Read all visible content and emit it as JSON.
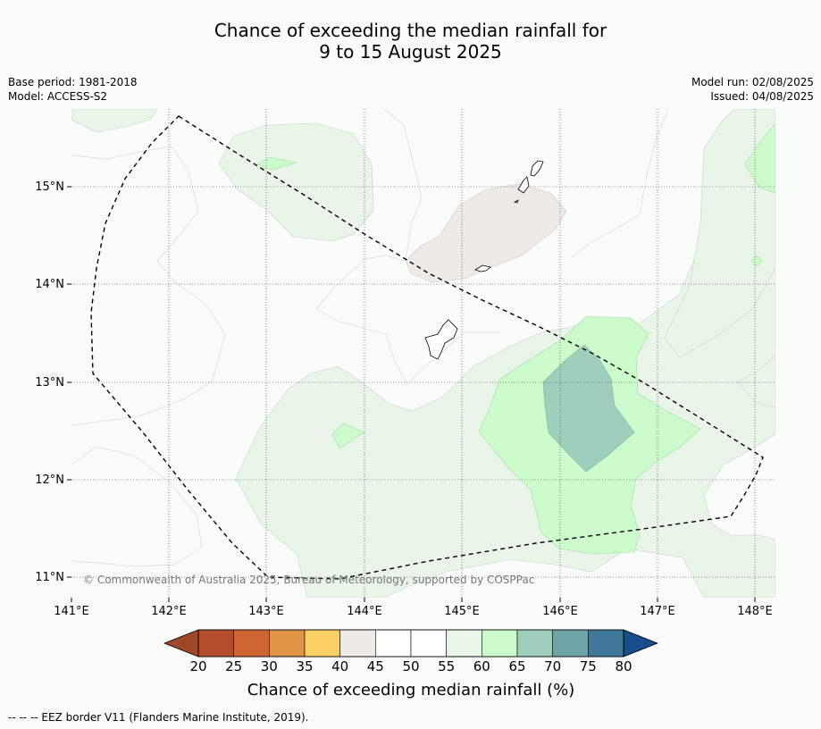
{
  "title": {
    "line1": "Chance of exceeding the median rainfall for",
    "line2": "9 to 15 August 2025"
  },
  "meta": {
    "base_period": "Base period: 1981-2018",
    "model": "Model: ACCESS-S2",
    "model_run": "Model run: 02/08/2025",
    "issued": "Issued: 04/08/2025"
  },
  "map": {
    "lon_labels": [
      "141°E",
      "142°E",
      "143°E",
      "144°E",
      "145°E",
      "146°E",
      "147°E",
      "148°E"
    ],
    "lat_labels": [
      "15°N",
      "14°N",
      "13°N",
      "12°N",
      "11°N"
    ],
    "copyright": "© Commonwealth of Australia 2025, Bureau of Meteorology, supported by COSPPac"
  },
  "legend": {
    "ticks": [
      "20",
      "25",
      "30",
      "35",
      "40",
      "45",
      "50",
      "55",
      "60",
      "65",
      "70",
      "75",
      "80"
    ],
    "colors": [
      "#b34d2a",
      "#cf6533",
      "#e09446",
      "#fdd066",
      "#eeebe6",
      "#ffffff",
      "#ffffff",
      "#e8f5e8",
      "#ccfbcc",
      "#9ecfbc",
      "#6ea5a8",
      "#3e7999"
    ],
    "low_extension_color": "#a3472b",
    "high_extension_color": "#184d8c",
    "label": "Chance of exceeding median rainfall (%)"
  },
  "footnote": "-- -- -- EEZ border V11 (Flanders Marine Institute, 2019)."
}
